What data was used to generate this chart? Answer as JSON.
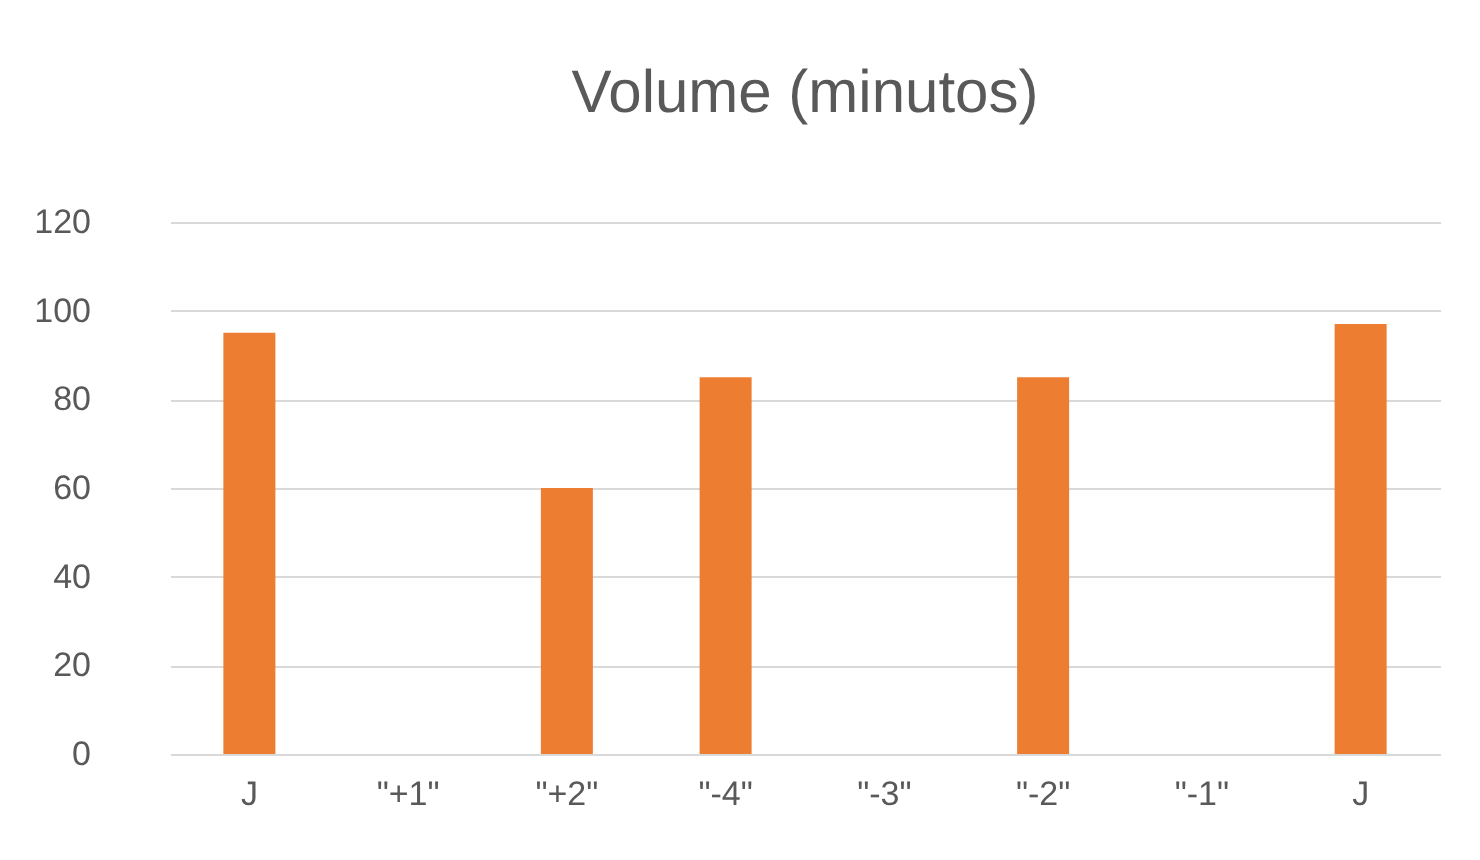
{
  "chart_data": {
    "type": "bar",
    "title": "Volume (minutos)",
    "categories": [
      "J",
      "\"+1\"",
      "\"+2\"",
      "\"-4\"",
      "\"-3\"",
      "\"-2\"",
      "\"-1\"",
      "J"
    ],
    "values": [
      95,
      null,
      60,
      85,
      null,
      85,
      null,
      97
    ],
    "color": "#ed7d31",
    "ylim": [
      0,
      120
    ],
    "yticks": [
      0,
      20,
      40,
      60,
      80,
      100,
      120
    ],
    "grid": "y"
  }
}
